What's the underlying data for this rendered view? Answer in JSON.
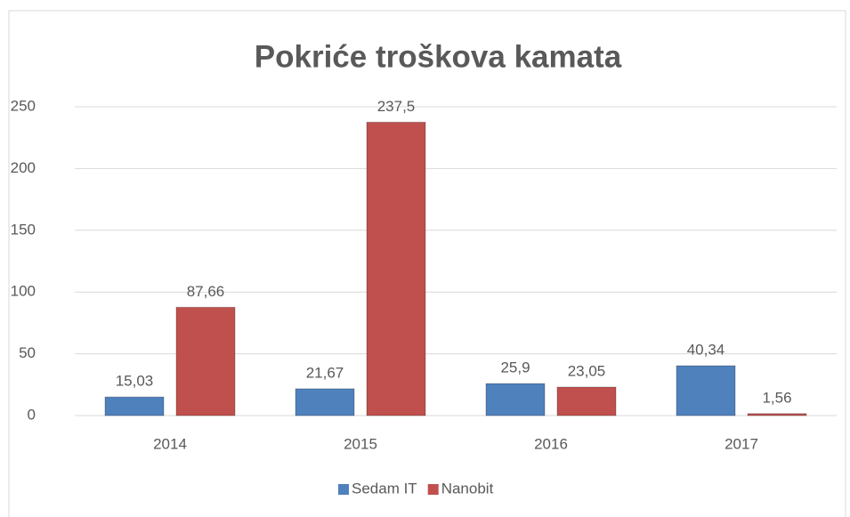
{
  "chart_data": {
    "type": "bar",
    "title": "Pokriće troškova kamata",
    "categories": [
      "2014",
      "2015",
      "2016",
      "2017"
    ],
    "series": [
      {
        "name": "Sedam IT",
        "color": "#4f81bd",
        "values": [
          15.03,
          21.67,
          25.9,
          40.34
        ],
        "value_labels": [
          "15,03",
          "21,67",
          "25,9",
          "40,34"
        ]
      },
      {
        "name": "Nanobit",
        "color": "#c0504d",
        "values": [
          87.66,
          237.5,
          23.05,
          1.56
        ],
        "value_labels": [
          "87,66",
          "237,5",
          "23,05",
          "1,56"
        ]
      }
    ],
    "ylim": [
      0,
      250
    ],
    "yticks": [
      0,
      50,
      100,
      150,
      200,
      250
    ],
    "grid": true,
    "legend": "bottom"
  }
}
